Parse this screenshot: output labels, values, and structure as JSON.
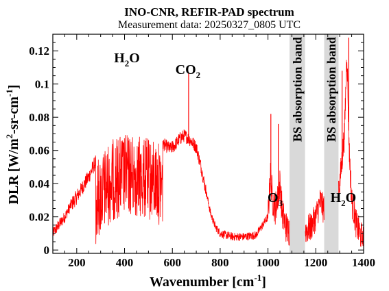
{
  "chart_data": {
    "type": "line",
    "title": "INO-CNR, REFIR-PAD spectrum",
    "subtitle": "Measurement data: 20250327_0805 UTC",
    "xlabel": {
      "base": "Wavenumber [cm",
      "sup": "-1",
      "tail": "]"
    },
    "ylabel": {
      "base": "DLR [W/m",
      "sup1": "2",
      "mid": "-sr-cm",
      "sup2": "-1",
      "tail": "]"
    },
    "xlim": [
      100,
      1400
    ],
    "ylim": [
      -0.002,
      0.13
    ],
    "xticks": [
      200,
      400,
      600,
      800,
      1000,
      1200,
      1400
    ],
    "yticks": [
      0,
      0.02,
      0.04,
      0.06,
      0.08,
      0.1,
      0.12
    ],
    "ytick_labels": [
      "0",
      "0.02",
      "0.04",
      "0.06",
      "0.08",
      "0.1",
      "0.12"
    ],
    "grid": false,
    "line_color": "#ff0000",
    "band_color": "#d9d9d9",
    "shaded_bands": [
      {
        "x0": 1090,
        "x1": 1155,
        "label": "BS absorption band"
      },
      {
        "x0": 1235,
        "x1": 1295,
        "label": "BS absorption band"
      }
    ],
    "annotations": [
      {
        "base": "H",
        "sub": "2",
        "tail": "O",
        "x": 410,
        "y": 0.113
      },
      {
        "base": "CO",
        "sub": "2",
        "tail": "",
        "x": 665,
        "y": 0.106
      },
      {
        "base": "O",
        "sub": "3",
        "tail": "",
        "x": 1030,
        "y": 0.029
      },
      {
        "base": "H",
        "sub": "2",
        "tail": "O",
        "x": 1315,
        "y": 0.029
      }
    ],
    "series": [
      {
        "x": [
          100,
          130,
          150,
          175,
          200,
          225,
          250,
          275,
          300,
          330,
          360,
          390,
          420,
          450,
          480,
          510,
          530,
          560,
          590,
          610,
          630,
          650,
          670,
          700,
          720,
          740,
          760,
          780,
          800,
          850,
          900,
          950,
          1000,
          1010,
          1020,
          1030,
          1040,
          1050,
          1060,
          1080,
          1160,
          1180,
          1200,
          1220,
          1230,
          1300,
          1320,
          1330,
          1340,
          1350,
          1370,
          1400
        ],
        "y": [
          0.01,
          0.016,
          0.02,
          0.027,
          0.032,
          0.038,
          0.044,
          0.052,
          0.058,
          0.064,
          0.068,
          0.07,
          0.07,
          0.069,
          0.068,
          0.067,
          0.066,
          0.064,
          0.061,
          0.063,
          0.067,
          0.069,
          0.067,
          0.062,
          0.05,
          0.036,
          0.022,
          0.014,
          0.01,
          0.008,
          0.008,
          0.009,
          0.02,
          0.045,
          0.03,
          0.025,
          0.03,
          0.04,
          0.022,
          0.012,
          0.012,
          0.014,
          0.02,
          0.03,
          0.025,
          0.04,
          0.07,
          0.12,
          0.06,
          0.03,
          0.015,
          0.005
        ],
        "peaks": [
          {
            "x": 668,
            "y": 0.107
          },
          {
            "x": 1012,
            "y": 0.082
          },
          {
            "x": 1043,
            "y": 0.076
          },
          {
            "x": 1338,
            "y": 0.128
          },
          {
            "x": 1310,
            "y": 0.108
          }
        ]
      }
    ]
  }
}
